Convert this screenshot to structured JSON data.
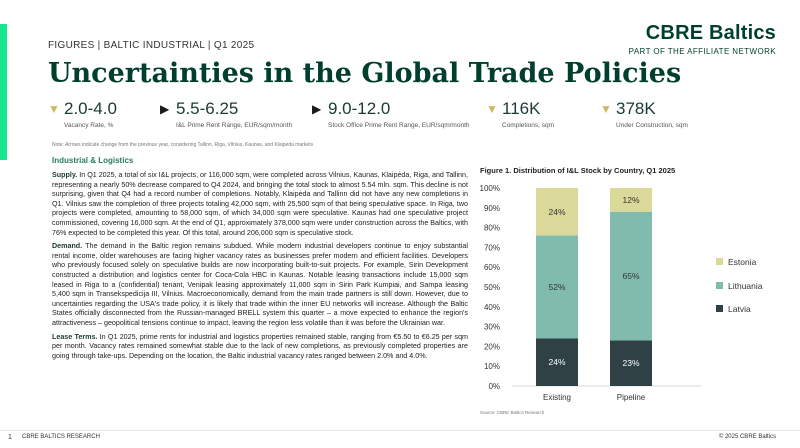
{
  "header": {
    "breadcrumb": "FIGURES  |  BALTIC INDUSTRIAL  |  Q1 2025",
    "title": "Uncertainties in the Global Trade Policies",
    "brand_logo": "CBRE Baltics",
    "brand_subtitle": "PART OF THE AFFILIATE NETWORK"
  },
  "kpis": [
    {
      "value": "2.0-4.0",
      "label": "Vacancy Rate, %",
      "arrow": "down",
      "arrow_color": "#cbb863"
    },
    {
      "value": "5.5-6.25",
      "label": "I&L Prime Rent Range, EUR/sqm/month",
      "arrow": "right",
      "arrow_color": "#1a1a1a"
    },
    {
      "value": "9.0-12.0",
      "label": "Stock Office Prime Rent Range, EUR/sqm/month",
      "arrow": "right",
      "arrow_color": "#1a1a1a"
    },
    {
      "value": "116K",
      "label": "Completions, sqm",
      "arrow": "down",
      "arrow_color": "#cbb863"
    },
    {
      "value": "378K",
      "label": "Under Construction, sqm",
      "arrow": "down",
      "arrow_color": "#cbb863"
    }
  ],
  "note": "Note: Arrows indicate change from the previous year, considering Tallinn, Riga, Vilnius, Kaunas, and Klaipėda markets",
  "section": {
    "heading": "Industrial & Logistics",
    "paragraphs": [
      {
        "lead": "Supply.",
        "text": " In Q1 2025, a total of six I&L projects, or 116,000 sqm, were completed across Vilnius, Kaunas, Klaipėda, Riga, and Tallinn, representing a nearly 50% decrease compared to Q4 2024, and bringing the total stock to almost 5.54 mln. sqm. This decline is not surprising, given that Q4 had a record number of completions. Notably, Klaipėda and Tallinn did not have any new completions in Q1. Vilnius saw the completion of three projects totaling 42,000 sqm, with 25,500 sqm of that being speculative space. In Riga, two projects were completed, amounting to 58,000 sqm, of which 34,000 sqm were speculative. Kaunas had one speculative project commissioned, covering 16,000 sqm. At the end of Q1, approximately 378,000 sqm were under construction across the Baltics, with 76% expected to be completed this year. Of this total, around 206,000 sqm is speculative stock."
      },
      {
        "lead": "Demand.",
        "text": " The demand in the Baltic region remains subdued. While modern industrial developers continue to enjoy substantial rental income, older warehouses are facing higher vacancy rates as businesses prefer modern and efficient facilities. Developers who previously focused solely on speculative builds are now incorporating built-to-suit projects. For example, Sirin Development constructed a distribution and logistics center for Coca-Cola HBC in Kaunas. Notable leasing transactions include 15,000 sqm leased in Riga to a (confidential) tenant, Venipak leasing approximately 11,000 sqm in Sirin Park Kumpiai, and Sampa leasing 5,400 sqm in Transekspedicija III, Vilnius. Macroeconomically, demand from the main trade partners is still down. However, due to uncertainties regarding the USA's trade policy, it is likely that trade within the inner EU networks will increase. Although the Baltic States officially disconnected from the Russian-managed BRELL system this quarter – a move expected to enhance the region's attractiveness – geopolitical tensions continue to impact, leaving the region less volatile than it was before the Ukrainian war."
      },
      {
        "lead": "Lease Terms.",
        "text": " In Q1 2025, prime rents for industrial and logistics properties remained stable, ranging from €5.50 to €6.25 per sqm per month. Vacancy rates remained somewhat stable due to the lack of new completions, as previously completed properties are going through take-ups. Depending on the location, the Baltic industrial vacancy rates ranged between 2.0% and 4.0%."
      }
    ]
  },
  "chart_data": {
    "type": "bar",
    "stacked": true,
    "title": "Figure 1. Distribution of I&L Stock by Country, Q1 2025",
    "categories": [
      "Existing",
      "Pipeline"
    ],
    "series": [
      {
        "name": "Latvia",
        "values": [
          24,
          23
        ],
        "labels": [
          "24%",
          "23%"
        ],
        "color": "#2f4145"
      },
      {
        "name": "Lithuania",
        "values": [
          52,
          65
        ],
        "labels": [
          "52%",
          "65%"
        ],
        "color": "#80bbad"
      },
      {
        "name": "Estonia",
        "values": [
          24,
          12
        ],
        "labels": [
          "24%",
          "12%"
        ],
        "color": "#dbd99a"
      }
    ],
    "y_ticks": [
      "0%",
      "10%",
      "20%",
      "30%",
      "40%",
      "50%",
      "60%",
      "70%",
      "80%",
      "90%",
      "100%"
    ],
    "ylim": [
      0,
      100
    ],
    "grid": false,
    "legend_position": "right",
    "source": "Source: CBRE Baltics Research"
  },
  "footer": {
    "page": "1",
    "left": "CBRE BALTICS RESEARCH",
    "right": "© 2025 CBRE Baltics"
  }
}
